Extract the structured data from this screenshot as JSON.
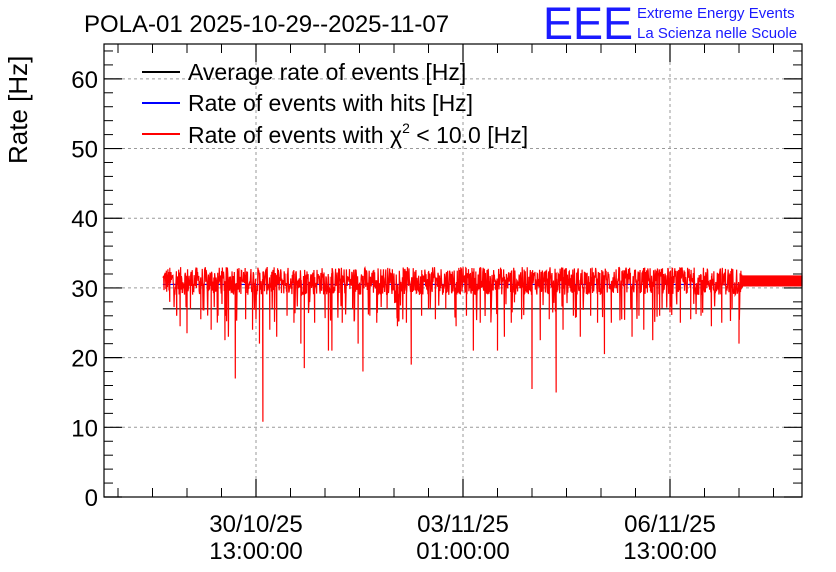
{
  "header": {
    "title": "POLA-01 2025-10-29--2025-11-07",
    "logo_text": "EEE",
    "logo_line1": "Extreme Energy Events",
    "logo_line2": "La Scienza nelle Scuole"
  },
  "colors": {
    "average": "#000000",
    "hits": "#0000ff",
    "chi2": "#ff0000",
    "grid": "#9a9a9a",
    "logo": "#1a1aff"
  },
  "chart_data": {
    "type": "line",
    "title": "POLA-01 2025-10-29--2025-11-07",
    "ylabel": "Rate [Hz]",
    "xlabel": "",
    "ylim": [
      0,
      65
    ],
    "yticks": [
      0,
      10,
      20,
      30,
      40,
      50,
      60
    ],
    "xlim_days": [
      0,
      10
    ],
    "xticks": [
      {
        "day": 2.0,
        "date": "30/10/25",
        "time": "13:00:00"
      },
      {
        "day": 5.0,
        "date": "03/11/25",
        "time": "01:00:00"
      },
      {
        "day": 8.0,
        "date": "06/11/25",
        "time": "13:00:00"
      }
    ],
    "grid": true,
    "legend_position": "top-left",
    "legend": [
      {
        "label": "Average rate of events [Hz]",
        "color": "#000000"
      },
      {
        "label": "Rate of events with hits [Hz]",
        "color": "#0000ff"
      },
      {
        "label_prefix": "Rate of events with ",
        "label_symbol": "χ",
        "label_sup": "2",
        "label_suffix": " < 10.0 [Hz]",
        "color": "#ff0000"
      }
    ],
    "series": [
      {
        "name": "Average rate of events [Hz]",
        "x": [
          0.65,
          10.0
        ],
        "values": [
          27.0,
          27.0
        ]
      },
      {
        "name": "Rate of events with hits [Hz]",
        "x": [
          0.65,
          10.0
        ],
        "values": [
          30.5,
          30.5
        ]
      },
      {
        "name": "Rate of events with χ² < 10.0 [Hz]",
        "x_start": 0.65,
        "x_end": 9.05,
        "base_range": [
          29.0,
          33.0
        ],
        "dips": [
          {
            "x": 0.75,
            "y": 28.0
          },
          {
            "x": 0.85,
            "y": 26.0
          },
          {
            "x": 0.9,
            "y": 24.5
          },
          {
            "x": 1.0,
            "y": 23.5
          },
          {
            "x": 1.05,
            "y": 27.0
          },
          {
            "x": 1.2,
            "y": 25.5
          },
          {
            "x": 1.35,
            "y": 24.0
          },
          {
            "x": 1.45,
            "y": 26.0
          },
          {
            "x": 1.55,
            "y": 22.5
          },
          {
            "x": 1.6,
            "y": 23.0
          },
          {
            "x": 1.7,
            "y": 17.0
          },
          {
            "x": 1.85,
            "y": 25.5
          },
          {
            "x": 1.95,
            "y": 24.0
          },
          {
            "x": 2.05,
            "y": 22.0
          },
          {
            "x": 2.1,
            "y": 10.8
          },
          {
            "x": 2.2,
            "y": 24.0
          },
          {
            "x": 2.3,
            "y": 23.0
          },
          {
            "x": 2.45,
            "y": 26.0
          },
          {
            "x": 2.55,
            "y": 25.0
          },
          {
            "x": 2.65,
            "y": 22.0
          },
          {
            "x": 2.7,
            "y": 18.5
          },
          {
            "x": 2.85,
            "y": 25.0
          },
          {
            "x": 3.0,
            "y": 27.0
          },
          {
            "x": 3.05,
            "y": 21.0
          },
          {
            "x": 3.1,
            "y": 21.0
          },
          {
            "x": 3.25,
            "y": 25.0
          },
          {
            "x": 3.4,
            "y": 27.0
          },
          {
            "x": 3.48,
            "y": 22.0
          },
          {
            "x": 3.55,
            "y": 18.0
          },
          {
            "x": 3.65,
            "y": 26.0
          },
          {
            "x": 3.75,
            "y": 25.0
          },
          {
            "x": 3.9,
            "y": 27.0
          },
          {
            "x": 4.05,
            "y": 24.5
          },
          {
            "x": 4.18,
            "y": 25.0
          },
          {
            "x": 4.25,
            "y": 19.0
          },
          {
            "x": 4.4,
            "y": 26.0
          },
          {
            "x": 4.5,
            "y": 27.0
          },
          {
            "x": 4.6,
            "y": 25.5
          },
          {
            "x": 4.75,
            "y": 27.0
          },
          {
            "x": 4.9,
            "y": 24.5
          },
          {
            "x": 5.05,
            "y": 26.0
          },
          {
            "x": 5.15,
            "y": 21.0
          },
          {
            "x": 5.25,
            "y": 25.0
          },
          {
            "x": 5.4,
            "y": 27.0
          },
          {
            "x": 5.5,
            "y": 21.0
          },
          {
            "x": 5.6,
            "y": 23.0
          },
          {
            "x": 5.7,
            "y": 25.0
          },
          {
            "x": 5.85,
            "y": 25.5
          },
          {
            "x": 6.0,
            "y": 15.5
          },
          {
            "x": 6.12,
            "y": 22.5
          },
          {
            "x": 6.25,
            "y": 25.5
          },
          {
            "x": 6.35,
            "y": 15.0
          },
          {
            "x": 6.45,
            "y": 24.0
          },
          {
            "x": 6.6,
            "y": 26.0
          },
          {
            "x": 6.7,
            "y": 23.0
          },
          {
            "x": 6.85,
            "y": 26.0
          },
          {
            "x": 6.95,
            "y": 25.0
          },
          {
            "x": 7.05,
            "y": 20.5
          },
          {
            "x": 7.15,
            "y": 25.0
          },
          {
            "x": 7.3,
            "y": 25.5
          },
          {
            "x": 7.45,
            "y": 23.0
          },
          {
            "x": 7.55,
            "y": 26.0
          },
          {
            "x": 7.62,
            "y": 24.0
          },
          {
            "x": 7.75,
            "y": 22.5
          },
          {
            "x": 7.85,
            "y": 26.0
          },
          {
            "x": 8.0,
            "y": 26.5
          },
          {
            "x": 8.15,
            "y": 25.0
          },
          {
            "x": 8.3,
            "y": 25.5
          },
          {
            "x": 8.45,
            "y": 26.0
          },
          {
            "x": 8.6,
            "y": 24.5
          },
          {
            "x": 8.75,
            "y": 25.0
          },
          {
            "x": 8.9,
            "y": 27.0
          },
          {
            "x": 9.0,
            "y": 22.0
          }
        ],
        "flat_x": [
          9.05,
          10.0
        ],
        "flat_range": [
          30.2,
          31.8
        ]
      }
    ]
  }
}
